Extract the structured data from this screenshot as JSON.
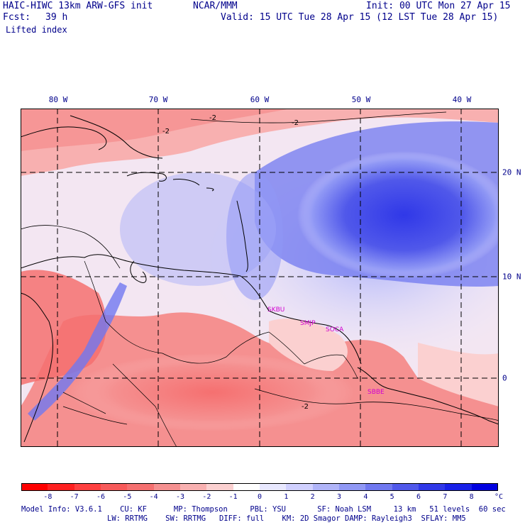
{
  "header": {
    "model": "HAIC-HIWC 13km ARW-GFS init",
    "agency": "NCAR/MMM",
    "init": "Init: 00 UTC Mon 27 Apr 15",
    "fcst_label": "Fcst:",
    "fcst_hours": "39 h",
    "valid": "Valid: 15 UTC Tue 28 Apr 15 (12 LST Tue 28 Apr 15)",
    "field": "Lifted index"
  },
  "map": {
    "lon_labels": [
      "80 W",
      "70 W",
      "60 W",
      "50 W",
      "40 W"
    ],
    "lat_labels": [
      "20 N",
      "10 N",
      "0"
    ],
    "stations": [
      "SKBU",
      "SMJP",
      "SOCA",
      "SBBE"
    ],
    "contour_label": "-2"
  },
  "colorbar": {
    "unit": "°C",
    "levels": [
      "-8",
      "-7",
      "-6",
      "-5",
      "-4",
      "-3",
      "-2",
      "-1",
      "0",
      "1",
      "2",
      "3",
      "4",
      "5",
      "6",
      "7",
      "8"
    ],
    "colors": [
      "#ff0000",
      "#ff2020",
      "#ff4040",
      "#f75a5a",
      "#f57070",
      "#f59090",
      "#f8b0b0",
      "#fbd0d0",
      "#ffffff",
      "#e8e8ff",
      "#d0d0ff",
      "#b0b4f8",
      "#9098f5",
      "#7078f0",
      "#5058ea",
      "#3038e8",
      "#1820e8",
      "#0000e0"
    ]
  },
  "footer": {
    "line1": "Model Info: V3.6.1    CU: KF      MP: Thompson     PBL: YSU       SF: Noah LSM     13 km   51 levels  60 sec",
    "line2": "LW: RRTMG    SW: RRTMG   DIFF: full    KM: 2D Smagor DAMP: Rayleigh3  SFLAY: MM5"
  }
}
